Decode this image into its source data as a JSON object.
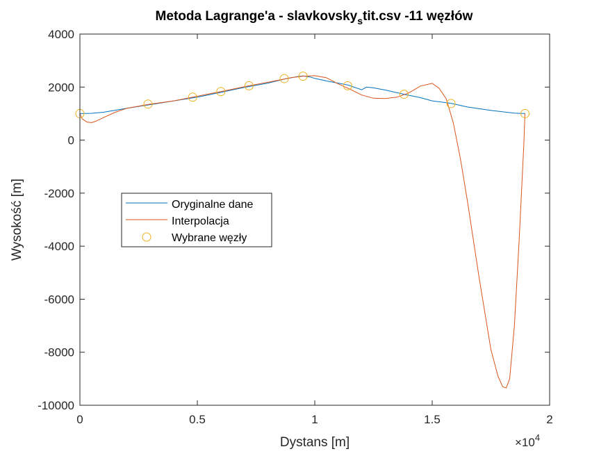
{
  "chart_data": {
    "type": "line",
    "title": {
      "main": "Metoda Lagrange'a - slavkovsky",
      "subscript": "s",
      "rest": "tit.csv -11 węzłów"
    },
    "xlabel": "Dystans [m]",
    "ylabel": "Wysokość [m]",
    "x_exponent_label": {
      "base": "×10",
      "exponent": "4"
    },
    "xlim": [
      0,
      20000
    ],
    "ylim": [
      -10000,
      4000
    ],
    "x_ticks": [
      0,
      5000,
      10000,
      15000,
      20000
    ],
    "x_tick_labels": [
      "0",
      "0.5",
      "1",
      "1.5",
      "2"
    ],
    "y_ticks": [
      -10000,
      -8000,
      -6000,
      -4000,
      -2000,
      0,
      2000,
      4000
    ],
    "y_tick_labels": [
      "-10000",
      "-8000",
      "-6000",
      "-4000",
      "-2000",
      "0",
      "2000",
      "4000"
    ],
    "grid": false,
    "legend_position": "middle-left",
    "series": [
      {
        "name": "Oryginalne dane",
        "style": "line",
        "color": "#0072BD",
        "x": [
          0,
          500,
          1000,
          2000,
          3000,
          4000,
          5000,
          6000,
          7000,
          8000,
          8700,
          9000,
          9300,
          9500,
          9800,
          10000,
          10500,
          11000,
          11400,
          11800,
          12000,
          12100,
          12200,
          12500,
          13000,
          13800,
          14500,
          15000,
          15800,
          16500,
          17500,
          18500,
          18950
        ],
        "y": [
          1000,
          1010,
          1050,
          1200,
          1340,
          1480,
          1620,
          1800,
          1990,
          2150,
          2300,
          2350,
          2400,
          2420,
          2380,
          2330,
          2230,
          2150,
          2080,
          1960,
          1900,
          1950,
          2000,
          1970,
          1890,
          1730,
          1600,
          1480,
          1390,
          1250,
          1120,
          1020,
          1000
        ]
      },
      {
        "name": "Interpolacja",
        "style": "line",
        "color": "#D95319",
        "x": [
          0,
          100,
          300,
          500,
          700,
          1000,
          1500,
          2000,
          3000,
          4000,
          4800,
          6000,
          7200,
          8000,
          8700,
          9000,
          9500,
          10000,
          10500,
          11000,
          11500,
          12000,
          12500,
          13000,
          13500,
          14000,
          14500,
          15000,
          15300,
          15600,
          15900,
          16200,
          16500,
          17000,
          17500,
          17800,
          18000,
          18150,
          18300,
          18500,
          18700,
          18900,
          18950
        ],
        "y": [
          1000,
          800,
          680,
          660,
          720,
          850,
          1050,
          1200,
          1360,
          1480,
          1620,
          1830,
          2050,
          2180,
          2300,
          2360,
          2410,
          2430,
          2350,
          2120,
          1920,
          1700,
          1580,
          1570,
          1620,
          1780,
          2040,
          2140,
          1950,
          1550,
          650,
          -700,
          -2300,
          -5200,
          -7900,
          -8900,
          -9300,
          -9350,
          -9000,
          -7000,
          -3800,
          -200,
          1000
        ]
      },
      {
        "name": "Wybrane węzły",
        "style": "marker",
        "color": "#EDB120",
        "x": [
          0,
          2900,
          4800,
          6000,
          7200,
          8700,
          9500,
          11400,
          13800,
          15800,
          18950
        ],
        "y": [
          1000,
          1360,
          1620,
          1830,
          2050,
          2320,
          2410,
          2050,
          1730,
          1380,
          1000
        ]
      }
    ]
  }
}
